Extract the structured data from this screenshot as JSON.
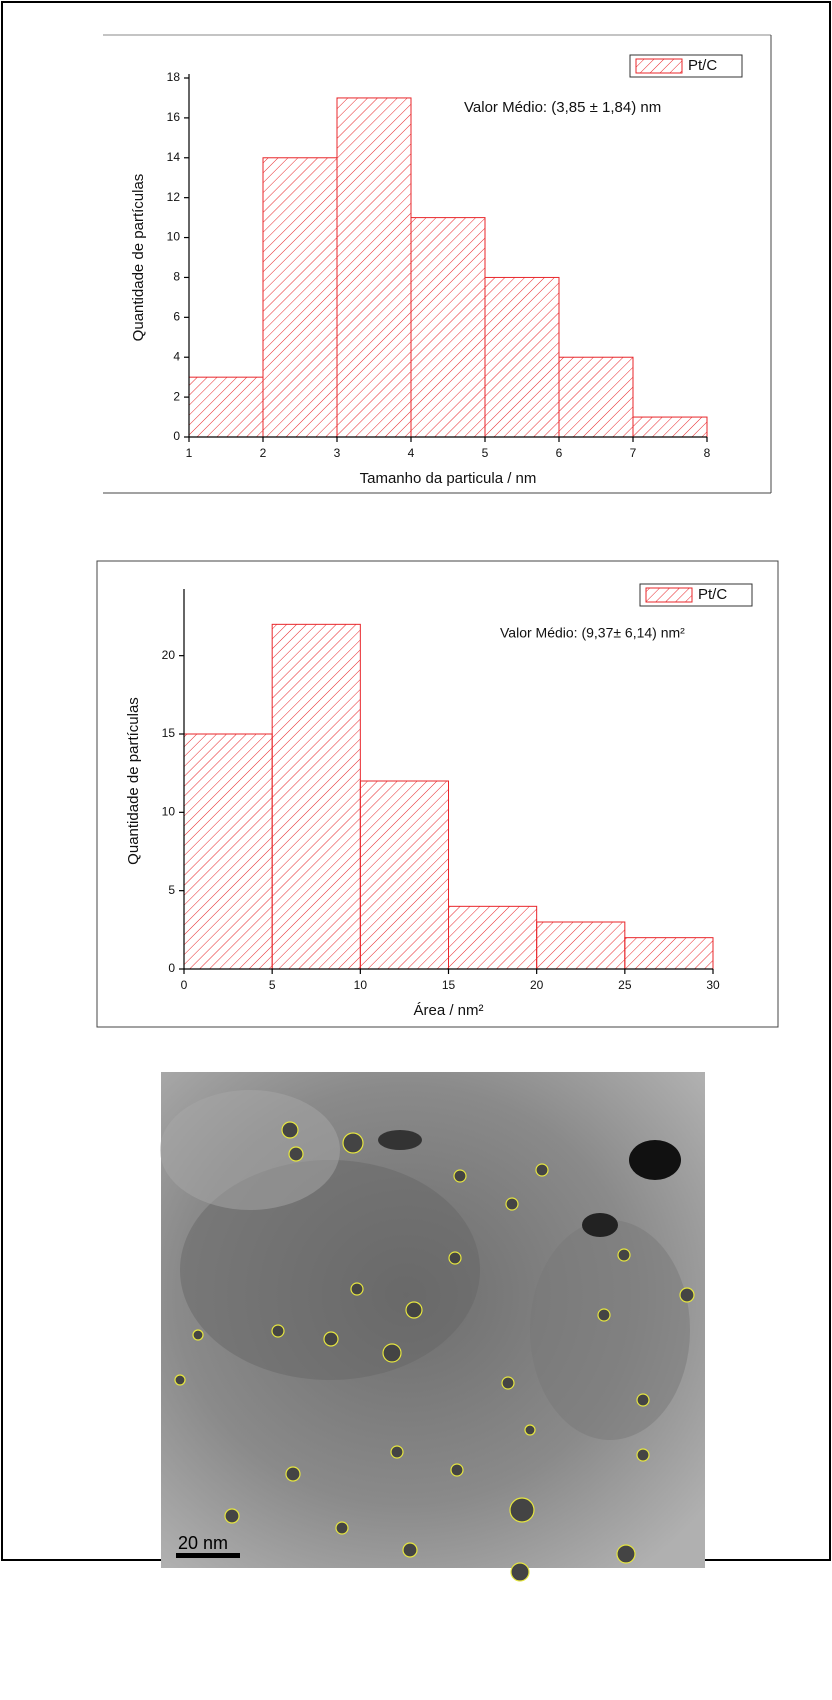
{
  "chart_data": [
    {
      "type": "histogram",
      "bins": [
        1,
        2,
        3,
        4,
        5,
        6,
        7,
        8
      ],
      "series": [
        {
          "name": "Pt/C",
          "color": "#e8262a",
          "values": [
            3,
            14,
            17,
            11,
            8,
            4,
            1
          ]
        }
      ],
      "xlim": [
        1,
        8
      ],
      "xticks": [
        1,
        2,
        3,
        4,
        5,
        6,
        7,
        8
      ],
      "ylim": [
        0,
        18
      ],
      "yticks": [
        0,
        2,
        4,
        6,
        8,
        10,
        12,
        14,
        16,
        18
      ],
      "x_label": "Tamanho da particula / nm",
      "y_label": "Quantidade de partículas",
      "annotation": "Valor Médio: (3,85 ± 1,84) nm",
      "legend": "upper right"
    },
    {
      "type": "histogram",
      "bins": [
        0,
        5,
        10,
        15,
        20,
        25,
        30
      ],
      "series": [
        {
          "name": "Pt/C",
          "color": "#e8262a",
          "values": [
            15,
            22,
            12,
            4,
            3,
            2
          ]
        }
      ],
      "xlim": [
        0,
        30
      ],
      "xticks": [
        0,
        5,
        10,
        15,
        20,
        25,
        30
      ],
      "ylim": [
        0,
        24
      ],
      "yticks": [
        0,
        5,
        10,
        15,
        20
      ],
      "x_label": "Área / nm²",
      "y_label": "Quantidade de partículas",
      "annotation": "Valor Médio: (9,37± 6,14) nm²",
      "legend": "upper right"
    }
  ],
  "micrograph": {
    "scale_bar": "20 nm"
  }
}
